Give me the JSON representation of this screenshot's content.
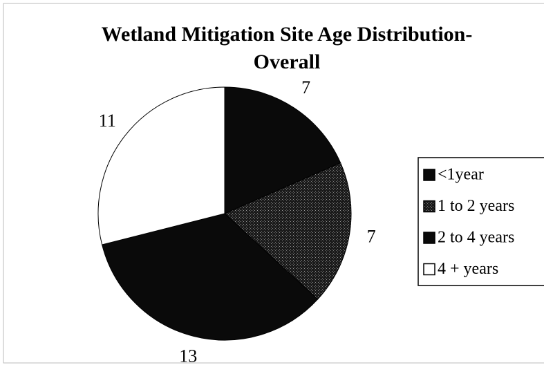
{
  "chart_data": {
    "type": "pie",
    "title": "Wetland Mitigation Site Age Distribution-Overall",
    "categories": [
      "<1year",
      "1 to 2 years",
      "2 to 4 years",
      "4 + years"
    ],
    "values": [
      7,
      7,
      13,
      11
    ],
    "colors": [
      "#0a0a0a",
      "#3c3c3c",
      "#0a0a0a",
      "#ffffff"
    ],
    "legend": "right"
  }
}
